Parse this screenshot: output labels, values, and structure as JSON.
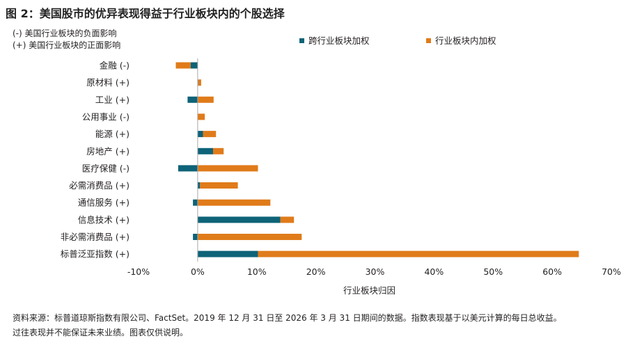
{
  "header": {
    "title": "图 2：美国股市的优异表现得益于行业板块内的个股选择"
  },
  "notes": {
    "negative": "(-) 美国行业板块的负面影响",
    "positive": "(+) 美国行业板块的正面影响"
  },
  "footer": {
    "source_line1": "资料来源：标普道琼斯指数有限公司、FactSet。2019 年 12 月 31 日至 2026 年 3 月 31 日期间的数据。指数表现基于以美元计算的每日总收益。",
    "source_line2": "过往表现并不能保证未来业绩。图表仅供说明。"
  },
  "colors": {
    "cross_sector": "#0e6378",
    "within_sector": "#e07b1a",
    "axis": "#a6a6a6"
  },
  "chart_data": {
    "type": "bar",
    "orientation": "horizontal",
    "stacked": true,
    "categories": [
      "金融 (-)",
      "原材料 (+)",
      "工业 (+)",
      "公用事业 (-)",
      "能源 (+)",
      "房地产 (+)",
      "医疗保健 (-)",
      "必需消费品 (+)",
      "通信服务 (+)",
      "信息技术 (+)",
      "非必需消费品 (+)",
      "标普泛亚指数 (+)"
    ],
    "series": [
      {
        "name": "跨行业板块加权",
        "color": "#0e6378",
        "values": [
          -1.2,
          0.1,
          -1.7,
          0.0,
          0.9,
          2.6,
          -3.3,
          0.4,
          -0.8,
          14.0,
          -0.8,
          10.2
        ]
      },
      {
        "name": "行业板块内加权",
        "color": "#e07b1a",
        "values": [
          -2.5,
          0.5,
          2.7,
          1.2,
          2.2,
          1.8,
          10.2,
          6.4,
          12.3,
          2.3,
          17.6,
          54.3
        ]
      }
    ],
    "xlabel": "行业板块归因",
    "ylabel": "",
    "xlim": [
      -10,
      70
    ],
    "xticks": [
      "-10%",
      "0%",
      "10%",
      "20%",
      "30%",
      "40%",
      "50%",
      "60%",
      "70%"
    ],
    "xtick_values": [
      -10,
      0,
      10,
      20,
      30,
      40,
      50,
      60,
      70
    ],
    "grid": false,
    "legend_position": "top"
  }
}
